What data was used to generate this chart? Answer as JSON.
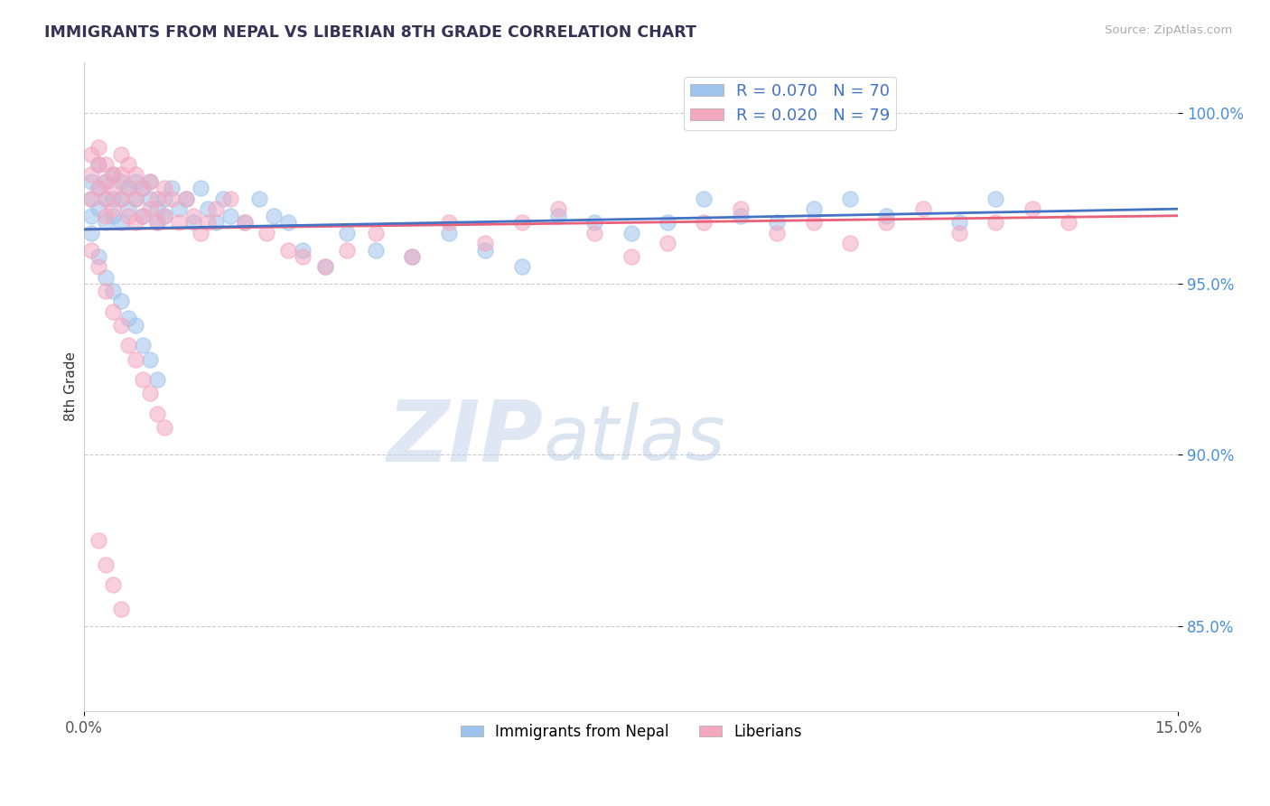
{
  "title": "IMMIGRANTS FROM NEPAL VS LIBERIAN 8TH GRADE CORRELATION CHART",
  "source_text": "Source: ZipAtlas.com",
  "ylabel": "8th Grade",
  "ytick_labels": [
    "100.0%",
    "95.0%",
    "90.0%",
    "85.0%"
  ],
  "ytick_values": [
    1.0,
    0.95,
    0.9,
    0.85
  ],
  "xlim": [
    0.0,
    0.15
  ],
  "ylim": [
    0.825,
    1.015
  ],
  "nepal_R": 0.07,
  "nepal_N": 70,
  "liberia_R": 0.02,
  "liberia_N": 79,
  "nepal_color": "#9ec4ed",
  "liberia_color": "#f4a8c0",
  "nepal_line_color": "#4472c4",
  "liberia_line_color": "#e8607a",
  "watermark_zip": "ZIP",
  "watermark_atlas": "atlas",
  "watermark_color": "#ccddf0",
  "watermark_atlas_color": "#b8cce4",
  "legend_label_nepal": "Immigrants from Nepal",
  "legend_label_liberia": "Liberians",
  "nepal_x": [
    0.001,
    0.001,
    0.001,
    0.002,
    0.002,
    0.002,
    0.003,
    0.003,
    0.003,
    0.004,
    0.004,
    0.004,
    0.005,
    0.005,
    0.005,
    0.006,
    0.006,
    0.007,
    0.007,
    0.008,
    0.008,
    0.009,
    0.009,
    0.01,
    0.01,
    0.011,
    0.011,
    0.012,
    0.013,
    0.014,
    0.015,
    0.016,
    0.017,
    0.018,
    0.019,
    0.02,
    0.022,
    0.024,
    0.026,
    0.028,
    0.03,
    0.033,
    0.036,
    0.04,
    0.045,
    0.05,
    0.055,
    0.06,
    0.065,
    0.07,
    0.075,
    0.08,
    0.085,
    0.09,
    0.095,
    0.1,
    0.105,
    0.11,
    0.12,
    0.125,
    0.001,
    0.002,
    0.003,
    0.004,
    0.005,
    0.006,
    0.007,
    0.008,
    0.009,
    0.01
  ],
  "nepal_y": [
    0.98,
    0.975,
    0.97,
    0.985,
    0.978,
    0.972,
    0.975,
    0.98,
    0.968,
    0.982,
    0.975,
    0.97,
    0.98,
    0.975,
    0.968,
    0.978,
    0.972,
    0.98,
    0.975,
    0.978,
    0.97,
    0.975,
    0.98,
    0.972,
    0.968,
    0.975,
    0.97,
    0.978,
    0.972,
    0.975,
    0.968,
    0.978,
    0.972,
    0.968,
    0.975,
    0.97,
    0.968,
    0.975,
    0.97,
    0.968,
    0.96,
    0.955,
    0.965,
    0.96,
    0.958,
    0.965,
    0.96,
    0.955,
    0.97,
    0.968,
    0.965,
    0.968,
    0.975,
    0.97,
    0.968,
    0.972,
    0.975,
    0.97,
    0.968,
    0.975,
    0.965,
    0.958,
    0.952,
    0.948,
    0.945,
    0.94,
    0.938,
    0.932,
    0.928,
    0.922
  ],
  "liberia_x": [
    0.001,
    0.001,
    0.001,
    0.002,
    0.002,
    0.002,
    0.003,
    0.003,
    0.003,
    0.003,
    0.004,
    0.004,
    0.004,
    0.005,
    0.005,
    0.005,
    0.006,
    0.006,
    0.006,
    0.007,
    0.007,
    0.007,
    0.008,
    0.008,
    0.009,
    0.009,
    0.01,
    0.01,
    0.011,
    0.011,
    0.012,
    0.013,
    0.014,
    0.015,
    0.016,
    0.017,
    0.018,
    0.02,
    0.022,
    0.025,
    0.028,
    0.03,
    0.033,
    0.036,
    0.04,
    0.045,
    0.05,
    0.055,
    0.06,
    0.065,
    0.07,
    0.075,
    0.08,
    0.085,
    0.09,
    0.095,
    0.1,
    0.105,
    0.11,
    0.115,
    0.12,
    0.125,
    0.13,
    0.135,
    0.001,
    0.002,
    0.003,
    0.004,
    0.005,
    0.006,
    0.007,
    0.008,
    0.009,
    0.01,
    0.011,
    0.002,
    0.003,
    0.004,
    0.005
  ],
  "liberia_y": [
    0.988,
    0.982,
    0.975,
    0.99,
    0.985,
    0.978,
    0.985,
    0.98,
    0.975,
    0.97,
    0.982,
    0.978,
    0.972,
    0.988,
    0.982,
    0.975,
    0.985,
    0.978,
    0.97,
    0.982,
    0.975,
    0.968,
    0.978,
    0.97,
    0.98,
    0.972,
    0.975,
    0.968,
    0.978,
    0.97,
    0.975,
    0.968,
    0.975,
    0.97,
    0.965,
    0.968,
    0.972,
    0.975,
    0.968,
    0.965,
    0.96,
    0.958,
    0.955,
    0.96,
    0.965,
    0.958,
    0.968,
    0.962,
    0.968,
    0.972,
    0.965,
    0.958,
    0.962,
    0.968,
    0.972,
    0.965,
    0.968,
    0.962,
    0.968,
    0.972,
    0.965,
    0.968,
    0.972,
    0.968,
    0.96,
    0.955,
    0.948,
    0.942,
    0.938,
    0.932,
    0.928,
    0.922,
    0.918,
    0.912,
    0.908,
    0.875,
    0.868,
    0.862,
    0.855
  ]
}
